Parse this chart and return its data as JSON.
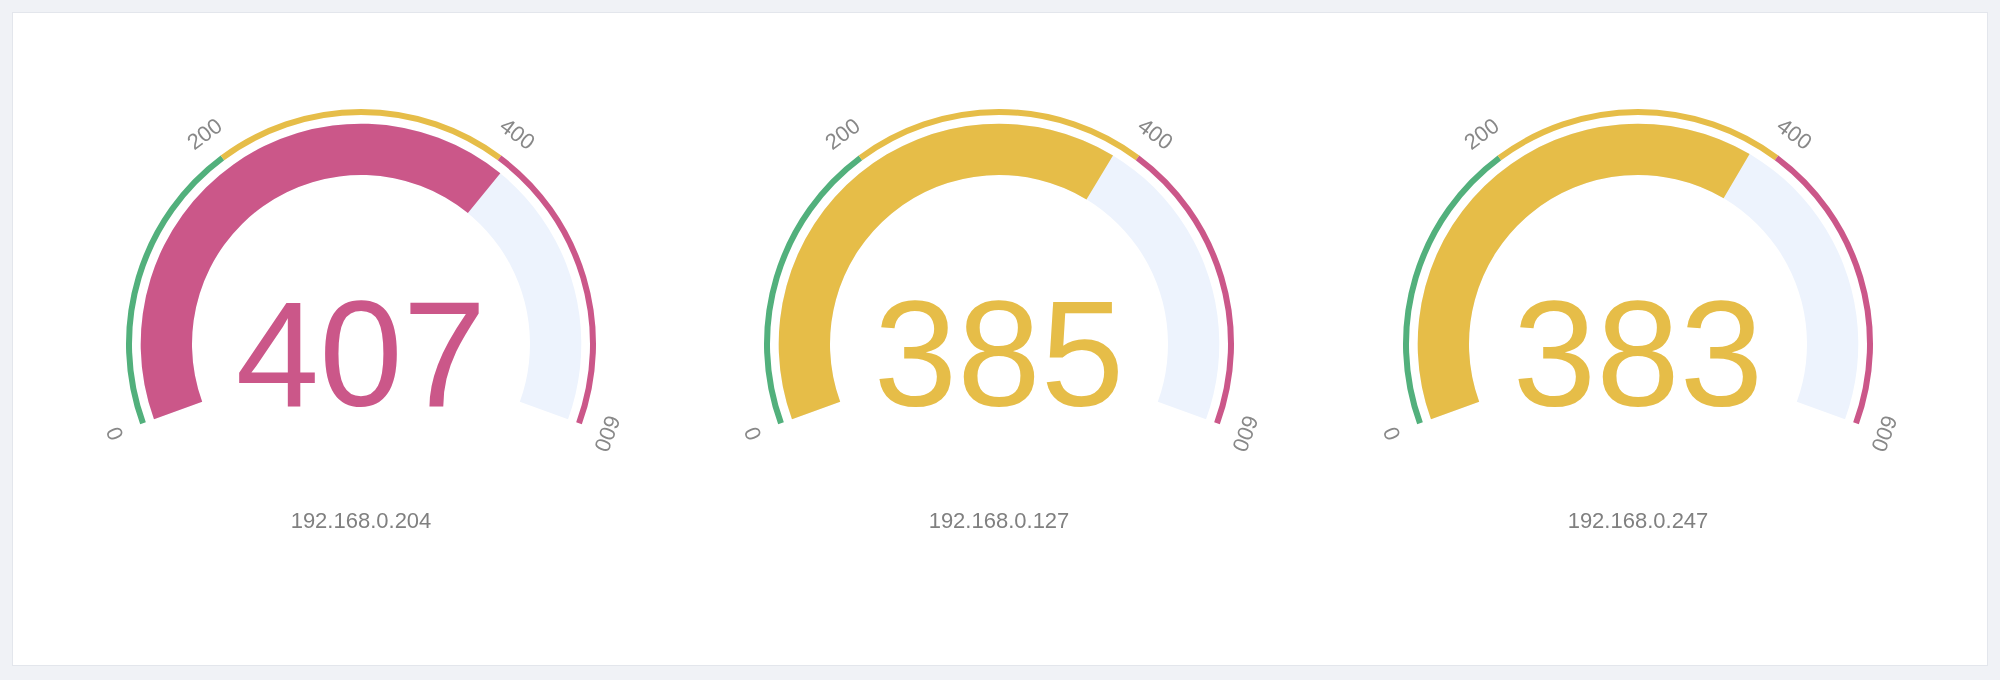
{
  "chart_data": [
    {
      "type": "other",
      "xlabel": "192.168.0.204",
      "values": [
        407
      ],
      "color": "#cb5789",
      "data_labels": true,
      "annotations": [
        "0",
        "200",
        "400",
        "600"
      ]
    },
    {
      "type": "other",
      "xlabel": "192.168.0.127",
      "values": [
        385
      ],
      "color": "#e6bd48",
      "data_labels": true,
      "annotations": [
        "0",
        "200",
        "400",
        "600"
      ]
    },
    {
      "type": "other",
      "xlabel": "192.168.0.247",
      "values": [
        383
      ],
      "color": "#e6bd48",
      "data_labels": true,
      "annotations": [
        "0",
        "200",
        "400",
        "600"
      ]
    }
  ]
}
